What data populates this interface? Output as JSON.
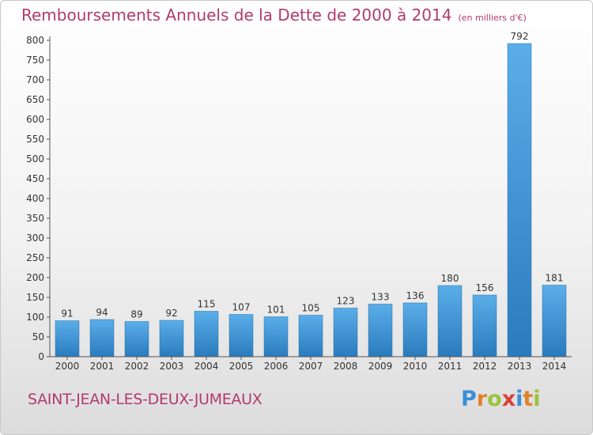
{
  "header": {
    "title": "Remboursements Annuels de la Dette de 2000 à 2014",
    "unit": "(en milliers d'€)"
  },
  "footer": {
    "commune": "SAINT-JEAN-LES-DEUX-JUMEAUX",
    "logo_text": "Proxiti",
    "logo_colors": [
      "#3a8fd8",
      "#e0822a",
      "#9bc23c",
      "#d8403a",
      "#3a8fd8",
      "#e0822a",
      "#9bc23c"
    ]
  },
  "colors": {
    "bar_light": "#5aaee8",
    "bar_dark": "#2a7bbd",
    "text": "#333333",
    "axis": "#555555"
  },
  "chart_data": {
    "type": "bar",
    "categories": [
      "2000",
      "2001",
      "2002",
      "2003",
      "2004",
      "2005",
      "2006",
      "2007",
      "2008",
      "2009",
      "2010",
      "2011",
      "2012",
      "2013",
      "2014"
    ],
    "values": [
      91,
      94,
      89,
      92,
      115,
      107,
      101,
      105,
      123,
      133,
      136,
      180,
      156,
      792,
      181
    ],
    "ylim": [
      0,
      800
    ],
    "yticks": [
      0,
      50,
      100,
      150,
      200,
      250,
      300,
      350,
      400,
      450,
      500,
      550,
      600,
      650,
      700,
      750,
      800
    ],
    "grid": false
  }
}
